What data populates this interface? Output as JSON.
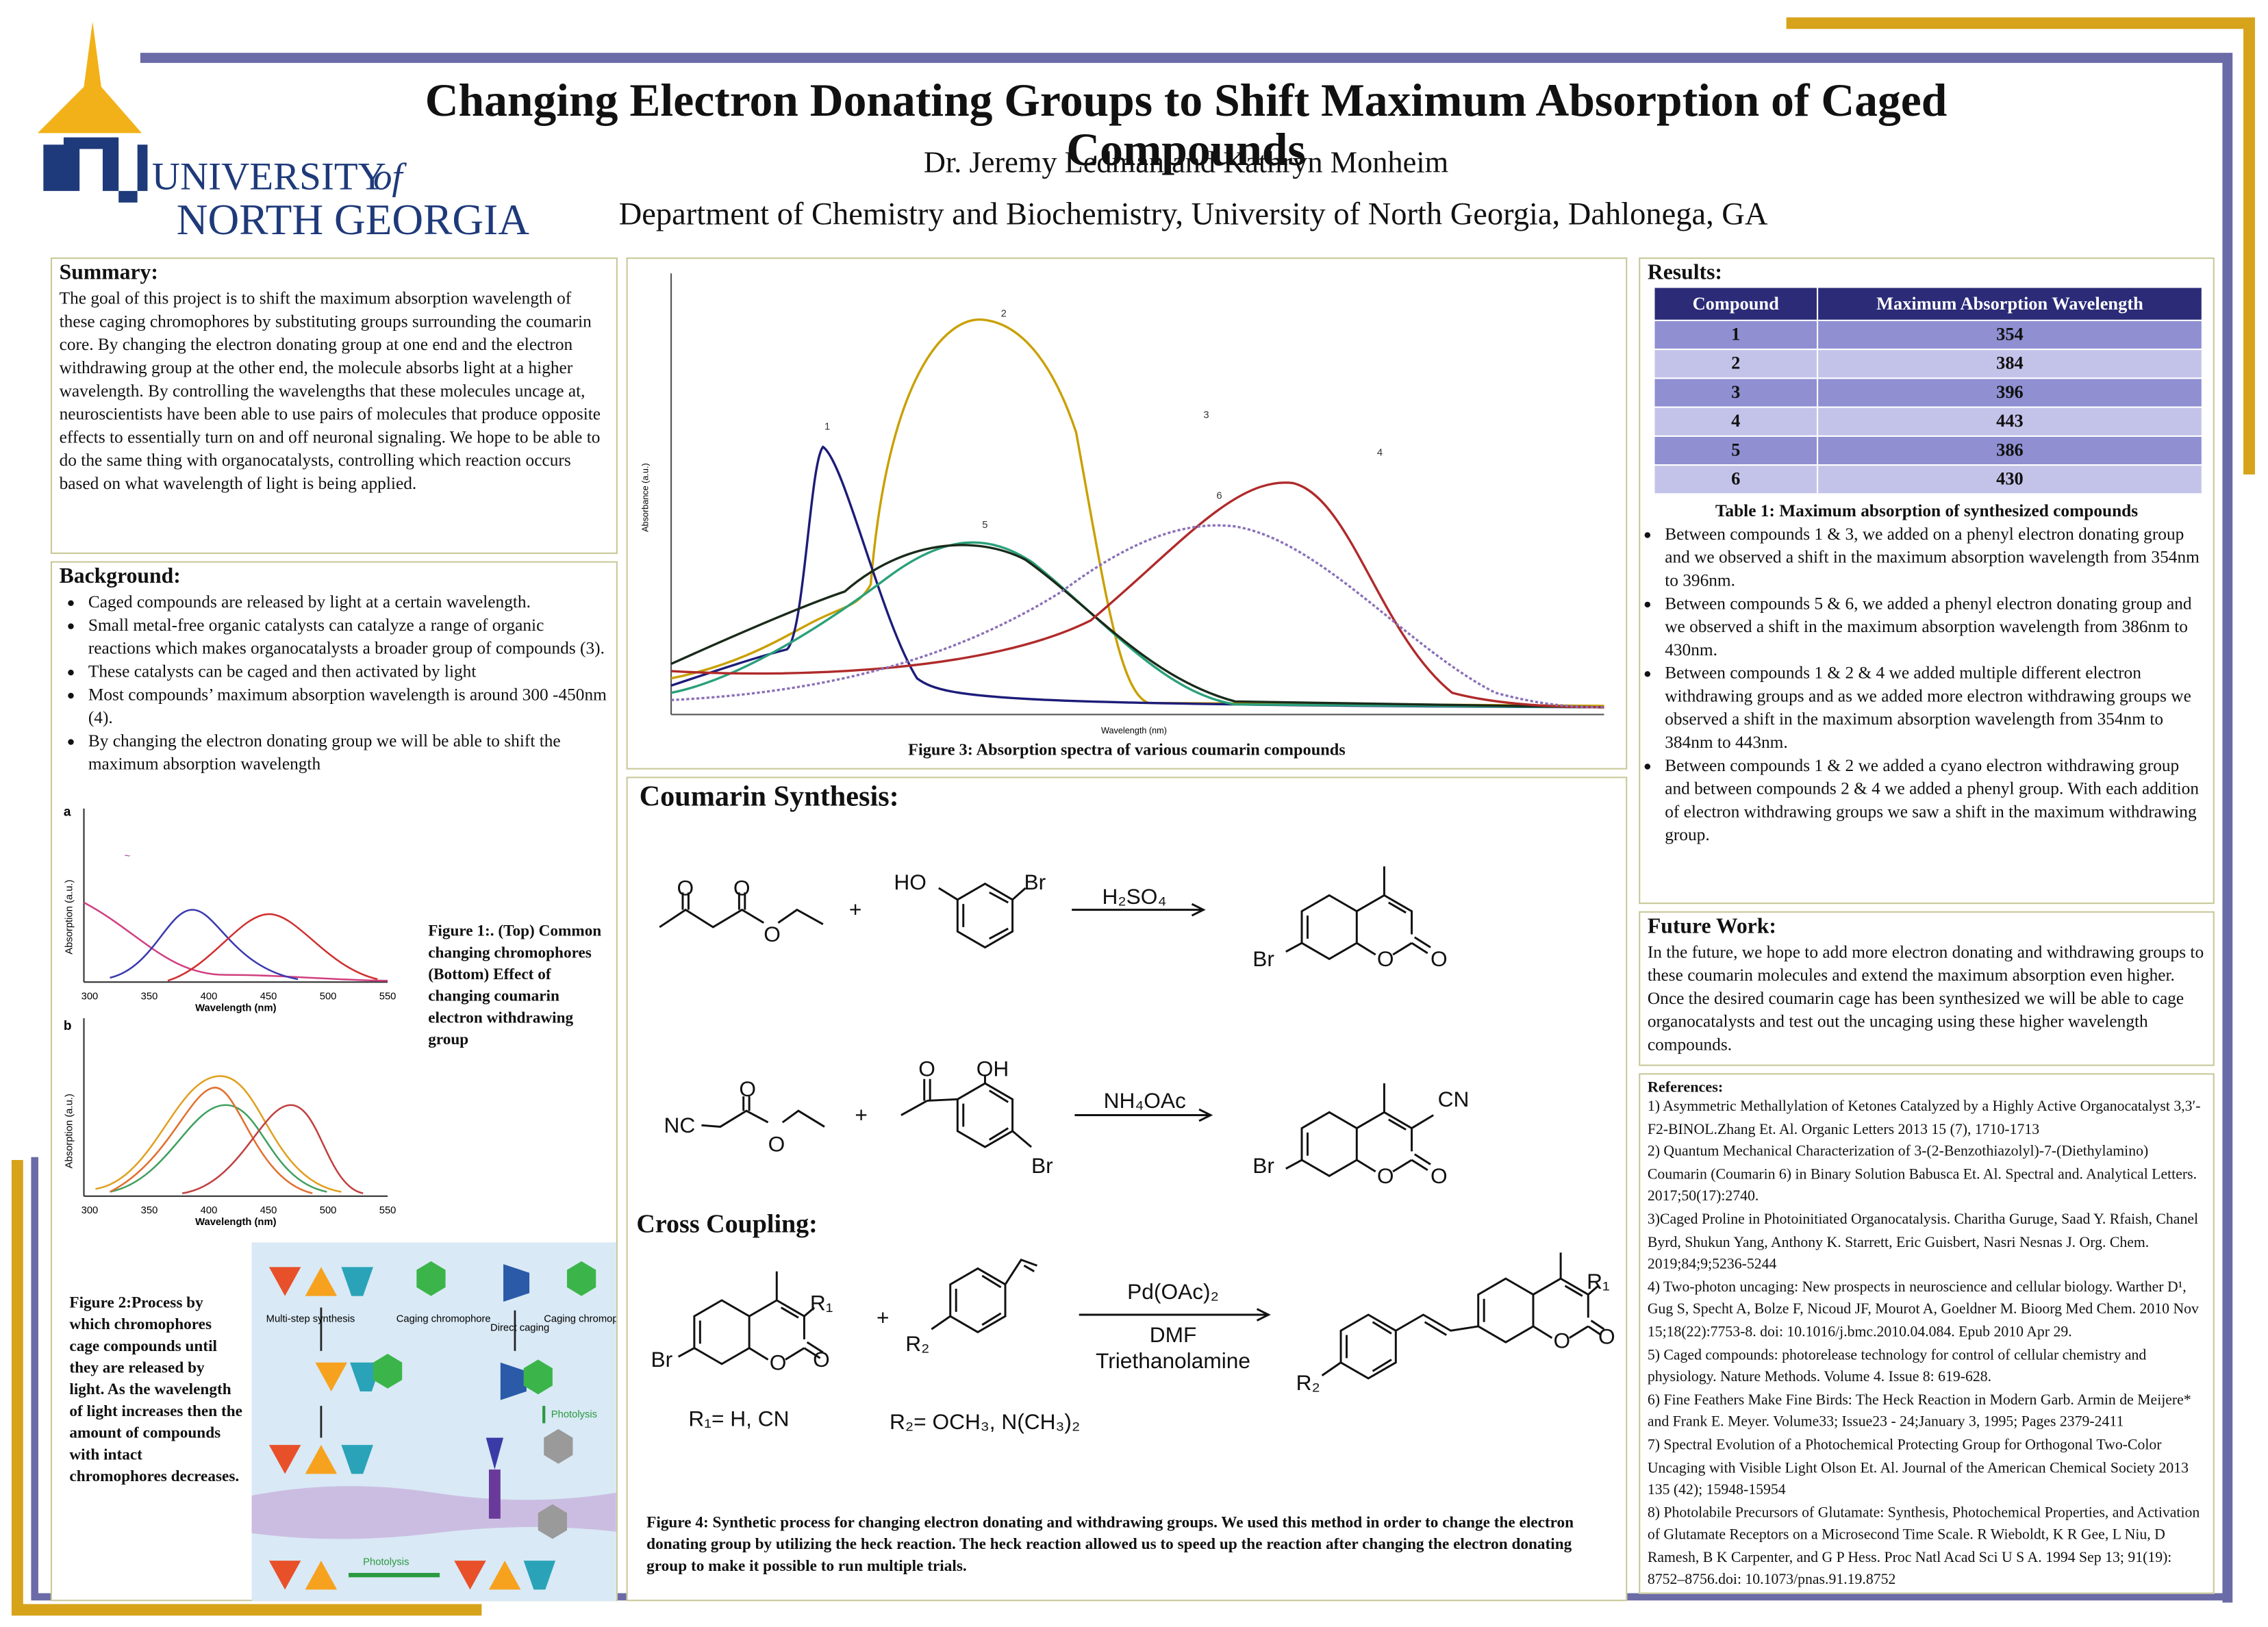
{
  "header": {
    "title": "Changing Electron Donating Groups to Shift Maximum Absorption of Caged Compounds",
    "authors": "Dr. Jeremy Ledman and Kathryn Monheim",
    "department": "Department of Chemistry and Biochemistry, University of  North Georgia, Dahlonega, GA",
    "logo_university": "UNIVERSITY",
    "logo_of": "of",
    "logo_name": "NORTH GEORGIA"
  },
  "summary": {
    "heading": "Summary:",
    "text": "The goal of this project is to shift the maximum absorption wavelength of these caging chromophores by substituting groups surrounding the coumarin core. By changing the electron donating group at one end and the electron withdrawing group at the other end, the molecule absorbs light at a higher wavelength. By controlling the wavelengths that these molecules uncage at, neuroscientists have been able to use pairs of molecules that produce opposite effects to essentially turn on and off neuronal signaling. We hope to be able to do the same thing with organocatalysts, controlling which reaction occurs based on what wavelength of light is being applied."
  },
  "background": {
    "heading": "Background:",
    "bullets": [
      "Caged compounds are released by light at a certain wavelength.",
      "Small metal-free organic catalysts can catalyze a range of organic reactions which makes organocatalysts a broader group of compounds (3).",
      "These catalysts can be caged and then activated by light",
      "Most compounds’ maximum absorption wavelength is around 300 -450nm (4).",
      "By changing the electron donating group we will be able to shift the maximum absorption wavelength"
    ],
    "figure1": {
      "panel_a": "a",
      "panel_b": "b",
      "y_label": "Absorption (a.u.)",
      "x_label": "Wavelength (nm)",
      "x_ticks": [
        "300",
        "350",
        "400",
        "450",
        "500",
        "550"
      ],
      "caption": "Figure 1:. (Top) Common changing chromophores (Bottom) Effect of changing coumarin electron withdrawing group"
    },
    "figure2": {
      "multi_step": "Multi-step synthesis",
      "caging_1": "Caging chromophore",
      "direct": "Direct caging",
      "caging_2": "Caging chromophore",
      "photolysis_1": "Photolysis",
      "photolysis_2": "Photolysis",
      "caption": "Figure 2:Process by which chromophores cage compounds until they are released by light. As the wavelength of light increases then the amount of compounds with intact chromophores decreases."
    }
  },
  "figure3": {
    "x_label": "Wavelength (nm)",
    "y_label": "Absorbance (a.u.)",
    "compounds": [
      "1",
      "2",
      "3",
      "4",
      "5",
      "6"
    ],
    "caption": "Figure 3: Absorption spectra of various coumarin compounds"
  },
  "synthesis": {
    "heading": "Coumarin Synthesis:",
    "reagent_1": "H₂SO₄",
    "reagent_2": "NH₄OAc",
    "cross_heading": "Cross Coupling:",
    "catalyst": "Pd(OAc)₂",
    "solvent": "DMF",
    "base": "Triethanolamine",
    "r1_def": "R₁= H, CN",
    "r2_def": "R₂= OCH₃, N(CH₃)₂",
    "atoms": {
      "O": "O",
      "HO": "HO",
      "OH": "OH",
      "Br": "Br",
      "NC": "NC",
      "CN": "CN",
      "R1": "R₁",
      "R2": "R₂",
      "plus": "+"
    },
    "caption": "Figure 4: Synthetic process for  changing electron donating and withdrawing groups. We used this method in order to change the electron donating group by utilizing the heck reaction. The heck reaction allowed us to speed up the reaction after changing the electron donating group to make it possible to run multiple trials."
  },
  "results": {
    "heading": "Results:",
    "table": {
      "header": [
        "Compound",
        "Maximum Absorption Wavelength"
      ],
      "rows": [
        [
          "1",
          "354"
        ],
        [
          "2",
          "384"
        ],
        [
          "3",
          "396"
        ],
        [
          "4",
          "443"
        ],
        [
          "5",
          "386"
        ],
        [
          "6",
          "430"
        ]
      ]
    },
    "caption": "Table 1: Maximum absorption of synthesized compounds",
    "bullets": [
      "Between compounds 1 & 3, we added on a phenyl electron donating group and we observed a shift in the maximum absorption wavelength from 354nm to 396nm.",
      "Between compounds 5 & 6, we added a phenyl electron donating group and we observed a shift in the maximum absorption wavelength from 386nm to 430nm.",
      "Between compounds 1 & 2 & 4 we added multiple different electron withdrawing groups and as we added more electron withdrawing groups we observed a shift in the maximum absorption wavelength from 354nm to 384nm to 443nm.",
      "Between compounds 1 & 2 we added a cyano electron withdrawing group and between compounds 2 & 4 we added a phenyl group. With each addition of electron withdrawing groups we saw a shift in the maximum withdrawing group."
    ]
  },
  "future": {
    "heading": "Future Work:",
    "text": "In the future, we hope to add more electron donating and withdrawing groups to these coumarin molecules and extend the maximum absorption even higher. Once the desired coumarin cage has been synthesized we will be able to cage organocatalysts and test out the uncaging using these higher wavelength compounds."
  },
  "references": {
    "heading": "References:",
    "items": [
      "1) Asymmetric Methallylation of Ketones Catalyzed by a Highly Active Organocatalyst 3,3′-F2-BINOL.Zhang Et. Al. Organic Letters 2013 15 (7), 1710-1713",
      "2) Quantum Mechanical Characterization of 3-(2-Benzothiazolyl)-7-(Diethylamino) Coumarin (Coumarin 6) in Binary Solution Babusca Et. Al. Spectral and. Analytical Letters. 2017;50(17):2740.",
      "3)Caged Proline in Photoinitiated Organocatalysis. Charitha Guruge, Saad Y. Rfaish, Chanel Byrd, Shukun Yang, Anthony K. Starrett, Eric Guisbert, Nasri Nesnas J. Org. Chem. 2019;84;9;5236-5244",
      "4) Two-photon uncaging: New prospects in neuroscience and cellular biology. Warther D¹, Gug S, Specht A, Bolze F, Nicoud JF, Mourot A, Goeldner M. Bioorg Med Chem. 2010 Nov 15;18(22):7753-8. doi: 10.1016/j.bmc.2010.04.084. Epub 2010 Apr 29.",
      "5) Caged compounds: photorelease technology for control of cellular chemistry and physiology. Nature Methods. Volume 4. Issue 8: 619-628.",
      "6) Fine Feathers Make Fine Birds: The Heck Reaction in Modern Garb. Armin de Meijere* and Frank E. Meyer. Volume33; Issue23 - 24;January 3, 1995; Pages 2379-2411",
      "7) Spectral Evolution of a Photochemical Protecting Group for Orthogonal Two-Color Uncaging with Visible Light Olson Et. Al. Journal of the American Chemical Society 2013 135 (42); 15948-15954",
      "8) Photolabile Precursors of Glutamate: Synthesis, Photochemical Properties, and Activation of Glutamate Receptors on a Microsecond Time Scale. R Wieboldt, K R Gee, L Niu, D Ramesh, B K Carpenter, and G P Hess. Proc Natl Acad Sci U S A. 1994 Sep 13; 91(19): 8752–8756.doi: 10.1073/pnas.91.19.8752"
    ]
  }
}
